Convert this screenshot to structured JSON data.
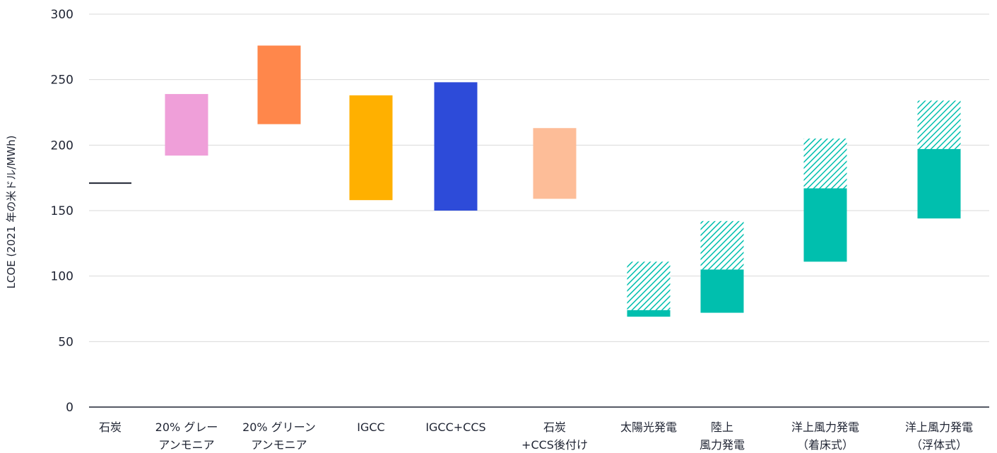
{
  "chart_data": {
    "type": "bar",
    "subtype": "floating-range",
    "ylabel": "LCOE (2021 年の米ドル/MWh)",
    "ylim": [
      0,
      300
    ],
    "yticks": [
      0,
      50,
      100,
      150,
      200,
      250,
      300
    ],
    "grid": true,
    "legend": "none",
    "categories": [
      {
        "label": [
          "石炭"
        ],
        "kind": "line",
        "value": 171,
        "color": "#1f2433"
      },
      {
        "label": [
          "20% グレー",
          "アンモニア"
        ],
        "kind": "range",
        "low": 192,
        "high": 239,
        "color": "#ef9fd9"
      },
      {
        "label": [
          "20% グリーン",
          "アンモニア"
        ],
        "kind": "range",
        "low": 216,
        "high": 276,
        "color": "#ff874b"
      },
      {
        "label": [
          "IGCC"
        ],
        "kind": "range",
        "low": 158,
        "high": 238,
        "color": "#ffb000"
      },
      {
        "label": [
          "IGCC+CCS"
        ],
        "kind": "range",
        "low": 150,
        "high": 248,
        "color": "#2d4bd9"
      },
      {
        "label": [
          "石炭",
          "+CCS後付け"
        ],
        "kind": "range",
        "low": 159,
        "high": 213,
        "color": "#fdbd98"
      },
      {
        "label": [
          "太陽光発電"
        ],
        "kind": "range",
        "low": 69,
        "high": 74,
        "hatch_high": 111,
        "color": "#00bfae"
      },
      {
        "label": [
          "陸上",
          "風力発電"
        ],
        "kind": "range",
        "low": 72,
        "high": 105,
        "hatch_high": 142,
        "color": "#00bfae"
      },
      {
        "label": [
          "洋上風力発電",
          "（着床式）"
        ],
        "kind": "range",
        "low": 111,
        "high": 167,
        "hatch_high": 205,
        "color": "#00bfae"
      },
      {
        "label": [
          "洋上風力発電",
          "（浮体式）"
        ],
        "kind": "range",
        "low": 144,
        "high": 197,
        "hatch_high": 234,
        "color": "#00bfae"
      }
    ]
  }
}
